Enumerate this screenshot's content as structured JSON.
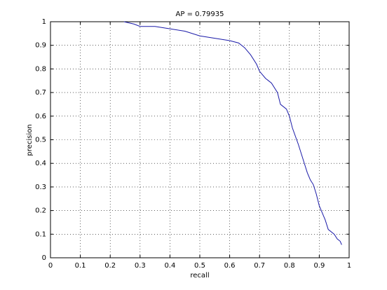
{
  "chart_data": {
    "type": "line",
    "title": "AP = 0.79935",
    "xlabel": "recall",
    "ylabel": "precision",
    "x": [
      0.246,
      0.28,
      0.3,
      0.35,
      0.4,
      0.45,
      0.5,
      0.55,
      0.6,
      0.63,
      0.65,
      0.67,
      0.69,
      0.7,
      0.72,
      0.74,
      0.76,
      0.77,
      0.79,
      0.8,
      0.81,
      0.83,
      0.84,
      0.86,
      0.87,
      0.88,
      0.89,
      0.9,
      0.91,
      0.92,
      0.93,
      0.95,
      0.96,
      0.97,
      0.975
    ],
    "values": [
      1.0,
      0.99,
      0.98,
      0.98,
      0.97,
      0.96,
      0.94,
      0.93,
      0.92,
      0.91,
      0.89,
      0.86,
      0.82,
      0.79,
      0.76,
      0.74,
      0.7,
      0.65,
      0.63,
      0.6,
      0.55,
      0.48,
      0.44,
      0.36,
      0.33,
      0.31,
      0.27,
      0.22,
      0.19,
      0.16,
      0.12,
      0.1,
      0.08,
      0.07,
      0.055
    ],
    "color": "#1a1aa8",
    "xlim": [
      0,
      1
    ],
    "ylim": [
      0,
      1
    ],
    "xticks": [
      0,
      0.1,
      0.2,
      0.3,
      0.4,
      0.5,
      0.6,
      0.7,
      0.8,
      0.9,
      1
    ],
    "yticks": [
      0,
      0.1,
      0.2,
      0.3,
      0.4,
      0.5,
      0.6,
      0.7,
      0.8,
      0.9,
      1
    ],
    "grid": true
  }
}
